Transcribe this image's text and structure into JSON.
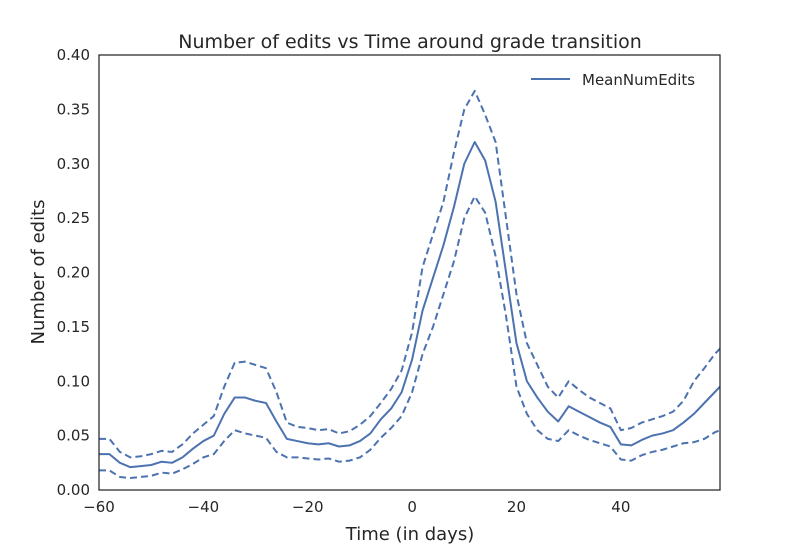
{
  "chart_data": {
    "type": "line",
    "title": "Number of edits vs Time around grade transition",
    "xlabel": "Time (in days)",
    "ylabel": "Number of edits",
    "xlim": [
      -60,
      59
    ],
    "ylim": [
      0.0,
      0.4
    ],
    "xticks": [
      -60,
      -40,
      -20,
      0,
      20,
      40
    ],
    "xtick_labels": [
      "−60",
      "−40",
      "−20",
      "0",
      "20",
      "40"
    ],
    "yticks": [
      0.0,
      0.05,
      0.1,
      0.15,
      0.2,
      0.25,
      0.3,
      0.35,
      0.4
    ],
    "ytick_labels": [
      "0.00",
      "0.05",
      "0.10",
      "0.15",
      "0.20",
      "0.25",
      "0.30",
      "0.35",
      "0.40"
    ],
    "grid": false,
    "legend_position": "top-right",
    "colors": {
      "line": "#4c72b0",
      "axis": "#262626"
    },
    "x": [
      -60,
      -58,
      -56,
      -54,
      -52,
      -50,
      -48,
      -46,
      -44,
      -42,
      -40,
      -38,
      -36,
      -34,
      -32,
      -30,
      -28,
      -26,
      -24,
      -22,
      -20,
      -18,
      -16,
      -14,
      -12,
      -10,
      -8,
      -6,
      -4,
      -2,
      0,
      2,
      4,
      6,
      8,
      10,
      12,
      14,
      16,
      18,
      20,
      22,
      24,
      26,
      28,
      30,
      32,
      34,
      36,
      38,
      40,
      42,
      44,
      46,
      48,
      50,
      52,
      54,
      56,
      58,
      59
    ],
    "series": [
      {
        "name": "MeanNumEdits",
        "style": "solid",
        "values": [
          0.033,
          0.033,
          0.025,
          0.021,
          0.022,
          0.023,
          0.026,
          0.025,
          0.03,
          0.038,
          0.045,
          0.05,
          0.07,
          0.085,
          0.085,
          0.082,
          0.08,
          0.063,
          0.047,
          0.045,
          0.043,
          0.042,
          0.043,
          0.04,
          0.041,
          0.045,
          0.052,
          0.065,
          0.075,
          0.09,
          0.12,
          0.165,
          0.195,
          0.225,
          0.26,
          0.3,
          0.32,
          0.303,
          0.265,
          0.2,
          0.135,
          0.1,
          0.085,
          0.072,
          0.063,
          0.077,
          0.072,
          0.067,
          0.062,
          0.058,
          0.042,
          0.041,
          0.046,
          0.05,
          0.052,
          0.055,
          0.062,
          0.07,
          0.08,
          0.09,
          0.095
        ]
      },
      {
        "name": "",
        "style": "dashed",
        "values": [
          0.047,
          0.047,
          0.035,
          0.03,
          0.031,
          0.033,
          0.036,
          0.035,
          0.042,
          0.052,
          0.06,
          0.068,
          0.095,
          0.117,
          0.118,
          0.115,
          0.112,
          0.09,
          0.062,
          0.058,
          0.057,
          0.055,
          0.056,
          0.052,
          0.054,
          0.06,
          0.068,
          0.08,
          0.093,
          0.11,
          0.145,
          0.205,
          0.235,
          0.265,
          0.31,
          0.35,
          0.367,
          0.345,
          0.32,
          0.25,
          0.18,
          0.135,
          0.115,
          0.095,
          0.085,
          0.1,
          0.092,
          0.085,
          0.08,
          0.075,
          0.055,
          0.057,
          0.062,
          0.065,
          0.068,
          0.072,
          0.082,
          0.1,
          0.112,
          0.125,
          0.13
        ]
      },
      {
        "name": "",
        "style": "dashed",
        "values": [
          0.018,
          0.018,
          0.012,
          0.011,
          0.012,
          0.013,
          0.016,
          0.015,
          0.019,
          0.024,
          0.03,
          0.033,
          0.045,
          0.055,
          0.052,
          0.05,
          0.048,
          0.035,
          0.03,
          0.03,
          0.029,
          0.028,
          0.029,
          0.026,
          0.027,
          0.03,
          0.037,
          0.048,
          0.057,
          0.068,
          0.09,
          0.125,
          0.15,
          0.18,
          0.21,
          0.25,
          0.27,
          0.255,
          0.215,
          0.16,
          0.095,
          0.07,
          0.055,
          0.047,
          0.045,
          0.055,
          0.05,
          0.046,
          0.043,
          0.04,
          0.028,
          0.027,
          0.032,
          0.035,
          0.037,
          0.04,
          0.043,
          0.044,
          0.047,
          0.053,
          0.055
        ]
      }
    ]
  }
}
